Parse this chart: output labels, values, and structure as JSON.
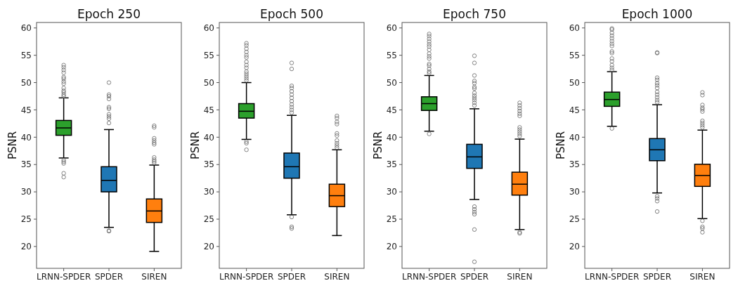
{
  "chart_data": [
    {
      "type": "box",
      "title": "Epoch 250",
      "ylabel": "PSNR",
      "categories": [
        "LRNN-SPDER",
        "SPDER",
        "SIREN"
      ],
      "colors": [
        "#2ca02c",
        "#1f77b4",
        "#ff7f0e"
      ],
      "ylim": [
        16,
        61
      ],
      "yticks": [
        20,
        25,
        30,
        35,
        40,
        45,
        50,
        55,
        60
      ],
      "boxes": [
        {
          "low": 36.2,
          "q1": 40.35,
          "median": 41.7,
          "q3": 43.07,
          "high": 47.2,
          "outliers": [
            53.2,
            52.8,
            52.3,
            51.8,
            51,
            50.7,
            50.2,
            49.8,
            49,
            48.5,
            48.2,
            47.8,
            47.5,
            35.8,
            35.5,
            35.2,
            33.4,
            32.7
          ]
        },
        {
          "low": 23.5,
          "q1": 30.0,
          "median": 32.1,
          "q3": 34.6,
          "high": 41.4,
          "outliers": [
            50.0,
            47.8,
            47.5,
            47.0,
            45.5,
            45.2,
            44.2,
            43.8,
            43.4,
            42.6,
            22.9,
            22.8
          ]
        },
        {
          "low": 19.1,
          "q1": 24.4,
          "median": 26.5,
          "q3": 28.7,
          "high": 34.9,
          "outliers": [
            42.1,
            41.8,
            39.8,
            39.4,
            39.0,
            38.7,
            36.3,
            35.9,
            35.6,
            35.3
          ]
        }
      ]
    },
    {
      "type": "box",
      "title": "Epoch 500",
      "ylabel": "PSNR",
      "categories": [
        "LRNN-SPDER",
        "SPDER",
        "SIREN"
      ],
      "colors": [
        "#2ca02c",
        "#1f77b4",
        "#ff7f0e"
      ],
      "ylim": [
        16,
        61
      ],
      "yticks": [
        20,
        25,
        30,
        35,
        40,
        45,
        50,
        55,
        60
      ],
      "boxes": [
        {
          "low": 39.6,
          "q1": 43.5,
          "median": 44.75,
          "q3": 46.15,
          "high": 50.0,
          "outliers": [
            57.2,
            56.8,
            56.2,
            55.6,
            55,
            54.6,
            53.8,
            53.2,
            52.7,
            52,
            51.6,
            51.2,
            50.8,
            50.4,
            39.2,
            38.9,
            37.7
          ]
        },
        {
          "low": 25.8,
          "q1": 32.5,
          "median": 34.6,
          "q3": 37.1,
          "high": 44.0,
          "outliers": [
            53.6,
            52.5,
            49.4,
            49.0,
            48.4,
            47.8,
            47.2,
            46.6,
            46.0,
            45.5,
            45,
            44.5,
            25.4,
            23.6,
            23.3
          ]
        },
        {
          "low": 22.0,
          "q1": 27.3,
          "median": 29.3,
          "q3": 31.4,
          "high": 37.7,
          "outliers": [
            43.9,
            43.5,
            42.8,
            42.4,
            40.7,
            40.3,
            39.4,
            38.9,
            38.5,
            38.1
          ]
        }
      ]
    },
    {
      "type": "box",
      "title": "Epoch 750",
      "ylabel": "PSNR",
      "categories": [
        "LRNN-SPDER",
        "SPDER",
        "SIREN"
      ],
      "colors": [
        "#2ca02c",
        "#1f77b4",
        "#ff7f0e"
      ],
      "ylim": [
        16,
        61
      ],
      "yticks": [
        20,
        25,
        30,
        35,
        40,
        45,
        50,
        55,
        60
      ],
      "boxes": [
        {
          "low": 41.1,
          "q1": 44.9,
          "median": 46.15,
          "q3": 47.4,
          "high": 51.3,
          "outliers": [
            58.9,
            58.5,
            58,
            57.5,
            57,
            56.6,
            56,
            55.3,
            54.8,
            54.4,
            53.4,
            53.1,
            52.5,
            52,
            51.7,
            40.6
          ]
        },
        {
          "low": 28.6,
          "q1": 34.3,
          "median": 36.4,
          "q3": 38.7,
          "high": 45.2,
          "outliers": [
            54.9,
            53.6,
            51.3,
            50.3,
            49.9,
            49.2,
            48.9,
            48.1,
            47.6,
            47.2,
            46.8,
            46.3,
            45.8,
            27.3,
            26.8,
            26.3,
            25.9,
            23.1,
            17.2
          ]
        },
        {
          "low": 23.1,
          "q1": 29.4,
          "median": 31.4,
          "q3": 33.6,
          "high": 39.65,
          "outliers": [
            46.3,
            45.8,
            45.3,
            44.8,
            44.3,
            43.9,
            41.8,
            41.4,
            41.0,
            40.6,
            40.2,
            22.6,
            22.4
          ]
        }
      ]
    },
    {
      "type": "box",
      "title": "Epoch 1000",
      "ylabel": "PSNR",
      "categories": [
        "LRNN-SPDER",
        "SPDER",
        "SIREN"
      ],
      "colors": [
        "#2ca02c",
        "#1f77b4",
        "#ff7f0e"
      ],
      "ylim": [
        16,
        61
      ],
      "yticks": [
        20,
        25,
        30,
        35,
        40,
        45,
        50,
        55,
        60
      ],
      "boxes": [
        {
          "low": 42.0,
          "q1": 45.65,
          "median": 46.9,
          "q3": 48.25,
          "high": 52.0,
          "outliers": [
            59.9,
            59.7,
            59.1,
            58.6,
            58.1,
            57.6,
            57.1,
            56.7,
            55.7,
            55.4,
            54.4,
            53.9,
            53.2,
            52.7,
            52.3,
            41.6
          ]
        },
        {
          "low": 29.8,
          "q1": 35.7,
          "median": 37.7,
          "q3": 39.75,
          "high": 45.95,
          "outliers": [
            55.5,
            55.4,
            50.9,
            50.5,
            49.9,
            49.5,
            49,
            48.3,
            47.8,
            47.3,
            46.8,
            46.4,
            29.2,
            28.8,
            28.3,
            26.4
          ]
        },
        {
          "low": 25.1,
          "q1": 31.0,
          "median": 33.0,
          "q3": 35.05,
          "high": 41.3,
          "outliers": [
            48.2,
            47.7,
            45.9,
            45.4,
            45.1,
            44.7,
            43,
            42.6,
            42.2,
            41.8,
            24.7,
            23.6,
            23.3,
            22.6
          ]
        }
      ]
    }
  ]
}
